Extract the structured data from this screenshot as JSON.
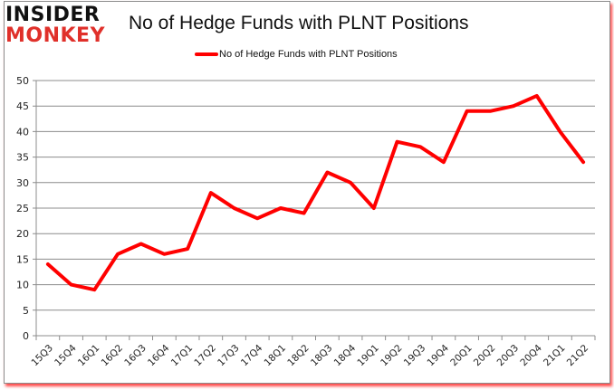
{
  "logo": {
    "line1": "INSIDER",
    "line2": "MONKEY"
  },
  "chart_data": {
    "type": "line",
    "title": "No of Hedge Funds with PLNT Positions",
    "xlabel": "",
    "ylabel": "",
    "ylim": [
      0,
      50
    ],
    "yticks": [
      0,
      5,
      10,
      15,
      20,
      25,
      30,
      35,
      40,
      45,
      50
    ],
    "grid": true,
    "legend_position": "top",
    "categories": [
      "15Q3",
      "15Q4",
      "16Q1",
      "16Q2",
      "16Q3",
      "16Q4",
      "17Q1",
      "17Q2",
      "17Q3",
      "17Q4",
      "18Q1",
      "18Q2",
      "18Q3",
      "18Q4",
      "19Q1",
      "19Q2",
      "19Q3",
      "19Q4",
      "20Q1",
      "20Q2",
      "20Q3",
      "20Q4",
      "21Q1",
      "21Q2"
    ],
    "series": [
      {
        "name": "No of Hedge Funds with PLNT Positions",
        "color": "#ff0000",
        "values": [
          14,
          10,
          9,
          16,
          18,
          16,
          17,
          28,
          25,
          23,
          25,
          24,
          32,
          30,
          25,
          38,
          37,
          34,
          44,
          44,
          45,
          47,
          40,
          34
        ]
      }
    ]
  },
  "colors": {
    "line": "#ff0000",
    "grid": "#8c8c8c",
    "logo_red": "#e0302a"
  }
}
